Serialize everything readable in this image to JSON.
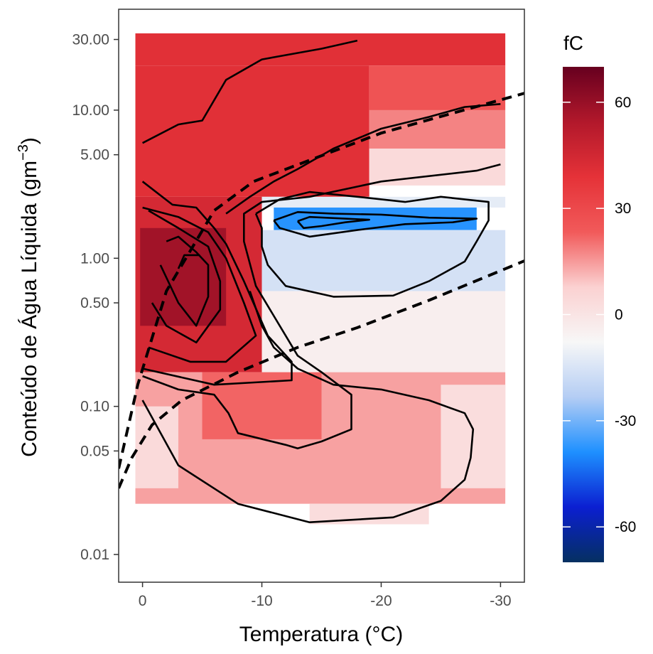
{
  "chart_data": {
    "type": "heatmap",
    "xlabel": "Temperatura (°C)",
    "ylabel_main": "Conteúdo de Água Líquida (gm",
    "ylabel_sup": "−3",
    "ylabel_close": ")",
    "xlim": [
      2,
      -32
    ],
    "ylim": [
      0.0065,
      48
    ],
    "y_scale": "log",
    "x_ticks": [
      {
        "value": 0,
        "label": "0"
      },
      {
        "value": -10,
        "label": "-10"
      },
      {
        "value": -20,
        "label": "-20"
      },
      {
        "value": -30,
        "label": "-30"
      }
    ],
    "y_ticks": [
      {
        "value": 30,
        "label": "30.00"
      },
      {
        "value": 10,
        "label": "10.00"
      },
      {
        "value": 5,
        "label": "5.00"
      },
      {
        "value": 1,
        "label": "1.00"
      },
      {
        "value": 0.5,
        "label": "0.50"
      },
      {
        "value": 0.1,
        "label": "0.10"
      },
      {
        "value": 0.05,
        "label": "0.05"
      },
      {
        "value": 0.01,
        "label": "0.01"
      }
    ],
    "legend": {
      "title": "fC",
      "range": [
        -70,
        70
      ],
      "ticks": [
        {
          "value": 60,
          "label": "60"
        },
        {
          "value": 30,
          "label": "30"
        },
        {
          "value": 0,
          "label": "0"
        },
        {
          "value": -30,
          "label": "-30"
        },
        {
          "value": -60,
          "label": "-60"
        }
      ],
      "colors": [
        "#053061",
        "#0b1fd1",
        "#1e90ff",
        "#b4cdf4",
        "#f7f7f7",
        "#fbd1d1",
        "#f15a5a",
        "#e53238",
        "#b2182b",
        "#67001f"
      ]
    },
    "cells": [
      {
        "x0": 0.6,
        "x1": -30.4,
        "y0": 20,
        "y1": 33,
        "value": 40
      },
      {
        "x0": 0.6,
        "x1": -19,
        "y0": 2.6,
        "y1": 20,
        "value": 40
      },
      {
        "x0": -19,
        "x1": -30.4,
        "y0": 10,
        "y1": 20,
        "value": 26
      },
      {
        "x0": -19,
        "x1": -30.4,
        "y0": 5.5,
        "y1": 10,
        "value": 18
      },
      {
        "x0": -19,
        "x1": -30.4,
        "y0": 3.1,
        "y1": 5.5,
        "value": 4
      },
      {
        "x0": 0.6,
        "x1": -10,
        "y0": 0.17,
        "y1": 2.6,
        "value": 44
      },
      {
        "x0": 0.2,
        "x1": -7,
        "y0": 0.35,
        "y1": 1.6,
        "value": 58
      },
      {
        "x0": -10,
        "x1": -30.4,
        "y0": 2.2,
        "y1": 2.6,
        "value": -12
      },
      {
        "x0": -11,
        "x1": -28,
        "y0": 1.55,
        "y1": 2.2,
        "value": -38
      },
      {
        "x0": -10,
        "x1": -30.4,
        "y0": 0.6,
        "y1": 1.55,
        "value": -16
      },
      {
        "x0": -10,
        "x1": -30.4,
        "y0": 0.17,
        "y1": 0.6,
        "value": -4
      },
      {
        "x0": 0.6,
        "x1": -30.4,
        "y0": 0.022,
        "y1": 0.17,
        "value": 14
      },
      {
        "x0": -5,
        "x1": -15,
        "y0": 0.06,
        "y1": 0.17,
        "value": 22
      },
      {
        "x0": -25,
        "x1": -30.4,
        "y0": 0.028,
        "y1": 0.14,
        "value": 3
      },
      {
        "x0": 0.6,
        "x1": -3,
        "y0": 0.028,
        "y1": 0.1,
        "value": 4
      },
      {
        "x0": -14,
        "x1": -24,
        "y0": 0.016,
        "y1": 0.022,
        "value": 3
      }
    ],
    "contours": [
      [
        [
          0,
          0.11
        ],
        [
          3,
          0.04
        ],
        [
          8,
          0.022
        ],
        [
          14,
          0.0165
        ],
        [
          21,
          0.0178
        ],
        [
          25,
          0.023
        ],
        [
          27,
          0.032
        ],
        [
          27.5,
          0.045
        ],
        [
          27.7,
          0.07
        ],
        [
          27,
          0.09
        ],
        [
          24,
          0.11
        ],
        [
          20,
          0.13
        ],
        [
          16,
          0.14
        ],
        [
          13,
          0.18
        ],
        [
          11,
          0.25
        ],
        [
          10,
          0.35
        ],
        [
          9,
          0.6
        ]
      ],
      [
        [
          0,
          0.16
        ],
        [
          3,
          0.13
        ],
        [
          6,
          0.12
        ],
        [
          7.2,
          0.09
        ],
        [
          8,
          0.066
        ],
        [
          12,
          0.055
        ],
        [
          13,
          0.052
        ],
        [
          15,
          0.058
        ],
        [
          17.5,
          0.07
        ],
        [
          17.5,
          0.12
        ],
        [
          15,
          0.17
        ],
        [
          13,
          0.22
        ],
        [
          11.5,
          0.35
        ],
        [
          9.5,
          0.65
        ],
        [
          8.5,
          1.3
        ],
        [
          8.5,
          2.0
        ],
        [
          10,
          2.4
        ],
        [
          14,
          2.6
        ],
        [
          20,
          3.3
        ],
        [
          28,
          3.9
        ],
        [
          30,
          4.3
        ]
      ],
      [
        [
          0,
          3.3
        ],
        [
          2.5,
          2.3
        ],
        [
          4.5,
          2.2
        ],
        [
          6,
          1.6
        ],
        [
          7,
          1.25
        ],
        [
          8.5,
          0.7
        ],
        [
          10.5,
          0.3
        ],
        [
          12.5,
          0.2
        ],
        [
          12.5,
          0.15
        ],
        [
          6,
          0.14
        ],
        [
          0,
          0.18
        ]
      ],
      [
        [
          0,
          2.2
        ],
        [
          3,
          1.9
        ],
        [
          5.5,
          1.5
        ],
        [
          7,
          1.0
        ],
        [
          8.5,
          0.5
        ],
        [
          9.5,
          0.3
        ],
        [
          7,
          0.2
        ],
        [
          4,
          0.2
        ],
        [
          0.5,
          0.25
        ]
      ],
      [
        [
          0.5,
          2.1
        ],
        [
          3,
          1.6
        ],
        [
          5.5,
          1.2
        ],
        [
          6.5,
          0.7
        ],
        [
          6.5,
          0.45
        ],
        [
          4.5,
          0.27
        ],
        [
          2,
          0.35
        ],
        [
          0.8,
          0.5
        ]
      ],
      [
        [
          2,
          1.3
        ],
        [
          3,
          1.4
        ],
        [
          4.5,
          1.1
        ],
        [
          5.5,
          0.9
        ],
        [
          5.5,
          0.55
        ],
        [
          4.5,
          0.35
        ],
        [
          3,
          0.5
        ],
        [
          1.5,
          0.9
        ]
      ],
      [
        [
          3,
          0.85
        ],
        [
          3.5,
          1.05
        ],
        [
          4.8,
          1.05
        ]
      ],
      [
        [
          0,
          6
        ],
        [
          3,
          8
        ],
        [
          5,
          8.5
        ],
        [
          7,
          16
        ],
        [
          10,
          22
        ],
        [
          15,
          26
        ],
        [
          18,
          29.5
        ]
      ],
      [
        [
          7,
          2.0
        ],
        [
          9,
          2.6
        ],
        [
          11,
          3.3
        ],
        [
          13,
          4.0
        ],
        [
          16,
          5.5
        ],
        [
          20,
          7.5
        ],
        [
          24,
          9
        ],
        [
          27,
          10.5
        ],
        [
          30,
          11
        ]
      ],
      [
        [
          9.5,
          2.0
        ],
        [
          11.5,
          2.5
        ],
        [
          14,
          2.8
        ],
        [
          18,
          2.6
        ],
        [
          22,
          2.4
        ],
        [
          25,
          2.6
        ],
        [
          29,
          2.4
        ],
        [
          29,
          1.8
        ],
        [
          28,
          1.3
        ],
        [
          27,
          0.95
        ],
        [
          24,
          0.7
        ],
        [
          21,
          0.56
        ],
        [
          16,
          0.55
        ],
        [
          12,
          0.65
        ],
        [
          10.5,
          0.9
        ],
        [
          10,
          1.2
        ],
        [
          10,
          1.6
        ],
        [
          9.5,
          2.0
        ]
      ],
      [
        [
          11,
          1.8
        ],
        [
          13,
          2.05
        ],
        [
          16,
          2.0
        ],
        [
          20,
          1.97
        ],
        [
          24,
          1.88
        ],
        [
          28,
          1.85
        ],
        [
          26,
          1.75
        ],
        [
          22,
          1.7
        ],
        [
          18,
          1.55
        ],
        [
          14,
          1.4
        ],
        [
          11.5,
          1.6
        ],
        [
          11,
          1.8
        ]
      ],
      [
        [
          13,
          1.78
        ],
        [
          14,
          1.9
        ],
        [
          17,
          1.85
        ],
        [
          19,
          1.82
        ],
        [
          17,
          1.75
        ],
        [
          15,
          1.65
        ],
        [
          13.5,
          1.6
        ],
        [
          13,
          1.78
        ]
      ]
    ],
    "boundaries": [
      [
        [
          2.0,
          0.038
        ],
        [
          0.4,
          0.14
        ],
        [
          -2.0,
          0.6
        ],
        [
          -6.0,
          2.1
        ],
        [
          -9.3,
          3.3
        ],
        [
          -20,
          7.0
        ],
        [
          -32.0,
          13.0
        ]
      ],
      [
        [
          2.0,
          0.028
        ],
        [
          0.9,
          0.045
        ],
        [
          -0.8,
          0.075
        ],
        [
          -3.3,
          0.11
        ],
        [
          -8.0,
          0.17
        ],
        [
          -13.0,
          0.25
        ],
        [
          -18,
          0.34
        ],
        [
          -24,
          0.52
        ],
        [
          -32.0,
          0.96
        ]
      ]
    ]
  }
}
